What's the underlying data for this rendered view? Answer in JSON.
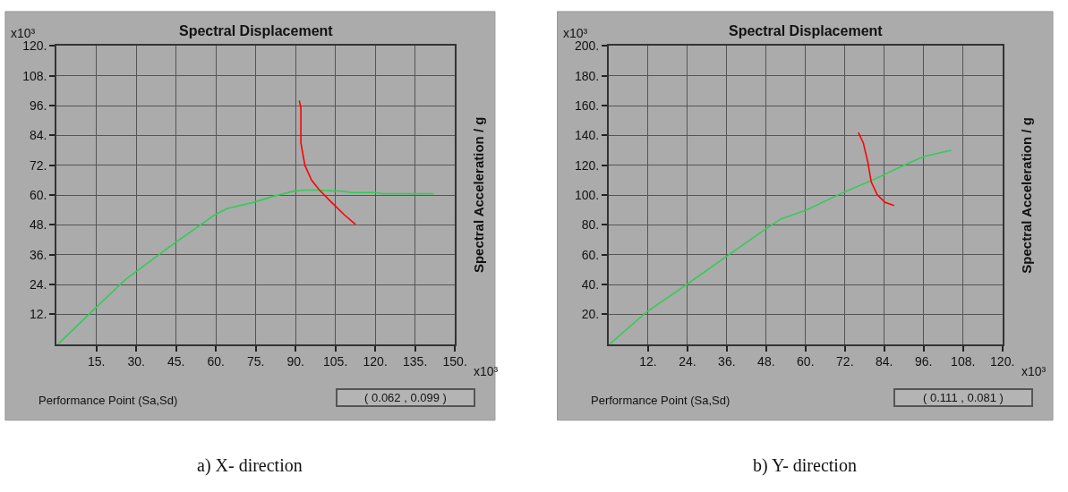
{
  "chart_data": [
    {
      "type": "line",
      "title": "Spectral Displacement",
      "y2label": "Spectral Acceleration / g",
      "xlim": [
        0,
        150
      ],
      "ylim": [
        0,
        120
      ],
      "xticks": [
        {
          "value": 15,
          "label": "15."
        },
        {
          "value": 30,
          "label": "30."
        },
        {
          "value": 45,
          "label": "45."
        },
        {
          "value": 60,
          "label": "60."
        },
        {
          "value": 75,
          "label": "75."
        },
        {
          "value": 90,
          "label": "90."
        },
        {
          "value": 105,
          "label": "105."
        },
        {
          "value": 120,
          "label": "120."
        },
        {
          "value": 135,
          "label": "135."
        },
        {
          "value": 150,
          "label": "150."
        }
      ],
      "yticks": [
        {
          "value": 12,
          "label": "12."
        },
        {
          "value": 24,
          "label": "24."
        },
        {
          "value": 36,
          "label": "36."
        },
        {
          "value": 48,
          "label": "48."
        },
        {
          "value": 60,
          "label": "60."
        },
        {
          "value": 72,
          "label": "72."
        },
        {
          "value": 84,
          "label": "84."
        },
        {
          "value": 96,
          "label": "96."
        },
        {
          "value": 108,
          "label": "108."
        },
        {
          "value": 120,
          "label": "120."
        }
      ],
      "grid": true,
      "series": [
        {
          "color": "#33cc55",
          "x": [
            0.6,
            15.5,
            26,
            43,
            59.5,
            64.3,
            74,
            82,
            89,
            93,
            98,
            108,
            111,
            120,
            123,
            142
          ],
          "values": [
            0,
            15.4,
            26,
            39.5,
            52,
            54.6,
            57,
            59.6,
            61.5,
            62,
            62,
            61.5,
            61,
            61,
            60.5,
            60.5
          ]
        },
        {
          "color": "#ff0000",
          "x": [
            91.4,
            92,
            92,
            93.5,
            96,
            99,
            103.6,
            108.4,
            112.5
          ],
          "values": [
            98,
            95,
            81,
            72,
            66,
            62,
            57,
            52,
            48.3
          ]
        }
      ],
      "annotations": [
        "x10³",
        "x10³",
        "Performance Point (Sa,Sd)",
        "( 0.062 , 0.099 )",
        "a) X- direction"
      ]
    },
    {
      "type": "line",
      "title": "Spectral Displacement",
      "y2label": "Spectral Acceleration / g",
      "xlim": [
        0,
        120
      ],
      "ylim": [
        0,
        200
      ],
      "xticks": [
        {
          "value": 12,
          "label": "12."
        },
        {
          "value": 24,
          "label": "24."
        },
        {
          "value": 36,
          "label": "36."
        },
        {
          "value": 48,
          "label": "48."
        },
        {
          "value": 60,
          "label": "60."
        },
        {
          "value": 72,
          "label": "72."
        },
        {
          "value": 84,
          "label": "84."
        },
        {
          "value": 96,
          "label": "96."
        },
        {
          "value": 108,
          "label": "108."
        },
        {
          "value": 120,
          "label": "120."
        }
      ],
      "yticks": [
        {
          "value": 20,
          "label": "20."
        },
        {
          "value": 40,
          "label": "40."
        },
        {
          "value": 60,
          "label": "60."
        },
        {
          "value": 80,
          "label": "80."
        },
        {
          "value": 100,
          "label": "100."
        },
        {
          "value": 120,
          "label": "120."
        },
        {
          "value": 140,
          "label": "140."
        },
        {
          "value": 160,
          "label": "160."
        },
        {
          "value": 180,
          "label": "180."
        },
        {
          "value": 200,
          "label": "200."
        }
      ],
      "grid": true,
      "series": [
        {
          "color": "#33cc55",
          "x": [
            0.3,
            11.8,
            23.8,
            36,
            48.7,
            52.6,
            60.3,
            70.8,
            80.4,
            90,
            96.3,
            104.4
          ],
          "values": [
            0,
            22,
            40,
            59,
            78.5,
            84,
            90,
            101,
            110,
            120,
            126,
            130
          ]
        },
        {
          "color": "#ff0000",
          "x": [
            76.1,
            77.6,
            79,
            80,
            81.9,
            84.3,
            87
          ],
          "values": [
            142,
            135,
            122,
            109,
            100,
            95,
            93
          ]
        }
      ],
      "annotations": [
        "x10³",
        "x10³",
        "Performance Point (Sa,Sd)",
        "( 0.111 , 0.081 )",
        "b) Y- direction"
      ]
    }
  ]
}
